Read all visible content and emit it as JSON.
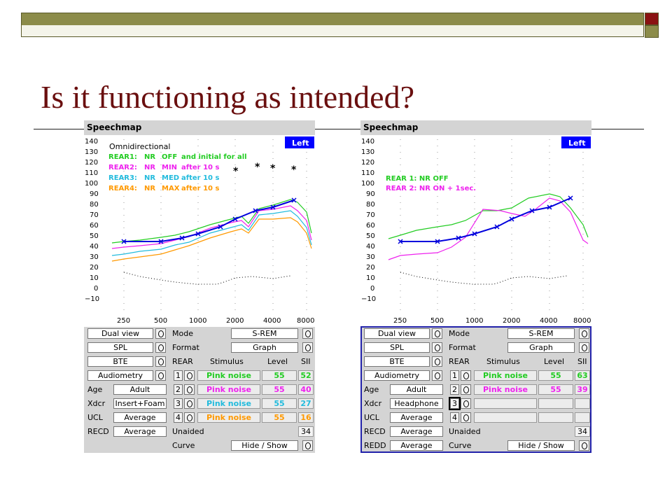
{
  "slide": {
    "title": "Is it functioning as intended?"
  },
  "colors": {
    "title": "#6a0f0f",
    "green": "#22cc22",
    "magenta": "#ee22ee",
    "cyan": "#22bbdd",
    "orange": "#ff9900",
    "blue": "#0000dd"
  },
  "panels": [
    {
      "title": "Speechmap",
      "left_button": "Left",
      "y_ticks": [
        "140",
        "130",
        "120",
        "110",
        "100",
        "90",
        "80",
        "70",
        "60",
        "50",
        "40",
        "30",
        "20",
        "10",
        "0",
        "−10"
      ],
      "x_ticks": [
        "250",
        "500",
        "1000",
        "2000",
        "4000",
        "8000"
      ],
      "legend_heading": "Omnidirectional",
      "legend": [
        {
          "a": "REAR1:",
          "b": "NR",
          "c": "OFF",
          "d": "and initial for all"
        },
        {
          "a": "REAR2:",
          "b": "NR",
          "c": "MIN",
          "d": "after 10 s"
        },
        {
          "a": "REAR3:",
          "b": "NR",
          "c": "MED",
          "d": "after 10 s"
        },
        {
          "a": "REAR4:",
          "b": "NR",
          "c": "MAX",
          "d": "after 10 s"
        }
      ],
      "asterisks": [
        "*",
        "*",
        "*",
        "*"
      ],
      "left_controls": [
        "Dual view",
        "SPL",
        "BTE",
        "Audiometry"
      ],
      "settings": [
        {
          "label": "Age",
          "value": "Adult"
        },
        {
          "label": "Xdcr",
          "value": "Insert+Foam"
        },
        {
          "label": "UCL",
          "value": "Average"
        },
        {
          "label": "RECD",
          "value": "Average"
        }
      ],
      "mode_label": "Mode",
      "mode_value": "S-REM",
      "format_label": "Format",
      "format_value": "Graph",
      "table_headers": {
        "rear": "REAR",
        "stimulus": "Stimulus",
        "level": "Level",
        "sii": "SII"
      },
      "rows": [
        {
          "n": "1",
          "stimulus": "Pink noise",
          "level": "55",
          "sii": "52"
        },
        {
          "n": "2",
          "stimulus": "Pink noise",
          "level": "55",
          "sii": "40"
        },
        {
          "n": "3",
          "stimulus": "Pink noise",
          "level": "55",
          "sii": "27"
        },
        {
          "n": "4",
          "stimulus": "Pink noise",
          "level": "55",
          "sii": "16"
        }
      ],
      "unaided_label": "Unaided",
      "unaided_value": "34",
      "curve_label": "Curve",
      "curve_value": "Hide / Show"
    },
    {
      "title": "Speechmap",
      "left_button": "Left",
      "y_ticks": [
        "140",
        "130",
        "120",
        "110",
        "100",
        "90",
        "80",
        "70",
        "60",
        "50",
        "40",
        "30",
        "20",
        "10",
        "0",
        "−10"
      ],
      "x_ticks": [
        "250",
        "500",
        "1000",
        "2000",
        "4000",
        "8000"
      ],
      "legend": [
        {
          "text": "REAR 1: NR OFF"
        },
        {
          "text": "REAR 2: NR ON + 1sec."
        }
      ],
      "left_controls": [
        "Dual view",
        "SPL",
        "BTE",
        "Audiometry"
      ],
      "settings": [
        {
          "label": "Age",
          "value": "Adult"
        },
        {
          "label": "Xdcr",
          "value": "Headphone"
        },
        {
          "label": "UCL",
          "value": "Average"
        },
        {
          "label": "RECD",
          "value": "Average"
        },
        {
          "label": "REDD",
          "value": "Average"
        }
      ],
      "mode_label": "Mode",
      "mode_value": "S-REM",
      "format_label": "Format",
      "format_value": "Graph",
      "table_headers": {
        "rear": "REAR",
        "stimulus": "Stimulus",
        "level": "Level",
        "sii": "SII"
      },
      "rows": [
        {
          "n": "1",
          "stimulus": "Pink noise",
          "level": "55",
          "sii": "63"
        },
        {
          "n": "2",
          "stimulus": "Pink noise",
          "level": "55",
          "sii": "39"
        },
        {
          "n": "3",
          "stimulus": "",
          "level": "",
          "sii": ""
        },
        {
          "n": "4",
          "stimulus": "",
          "level": "",
          "sii": ""
        }
      ],
      "unaided_label": "Unaided",
      "unaided_value": "34",
      "curve_label": "Curve",
      "curve_value": "Hide / Show"
    }
  ]
}
